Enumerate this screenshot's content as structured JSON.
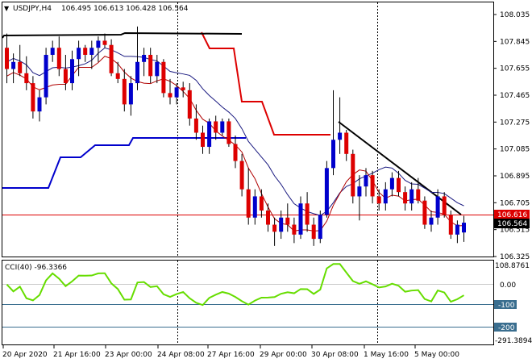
{
  "header": {
    "symbol": "USDJPY,H4",
    "ohlc": "106.495 106.613 106.428 106.564"
  },
  "price_axis": {
    "labels": [
      "108.035",
      "107.845",
      "107.655",
      "107.465",
      "107.275",
      "107.085",
      "106.895",
      "106.705",
      "106.515",
      "106.325"
    ],
    "badge_red": "106.616",
    "badge_black": "106.564"
  },
  "cci": {
    "title": "CCI(40) -96.3366",
    "axis_labels": [
      "108.8761",
      "0.00",
      "-100",
      "-200",
      "-291.3894"
    ]
  },
  "time_axis": {
    "labels": [
      "20 Apr 2020",
      "21 Apr 16:00",
      "23 Apr 00:00",
      "24 Apr 08:00",
      "27 Apr 16:00",
      "29 Apr 00:00",
      "30 Apr 08:00",
      "1 May 16:00",
      "5 May 00:00"
    ]
  },
  "colors": {
    "bull": "#0000cc",
    "bear": "#dd0000",
    "cci_line": "#66dd00",
    "trend": "#000000",
    "level_line": "#dd0000"
  },
  "chart_data": {
    "type": "candlestick",
    "title": "USDJPY,H4",
    "ylim": [
      106.325,
      108.13
    ],
    "candles": [
      [
        107.8,
        107.9,
        107.55,
        107.65
      ],
      [
        107.65,
        107.76,
        107.55,
        107.7
      ],
      [
        107.7,
        107.82,
        107.6,
        107.62
      ],
      [
        107.62,
        107.74,
        107.5,
        107.55
      ],
      [
        107.55,
        107.6,
        107.3,
        107.35
      ],
      [
        107.35,
        107.5,
        107.28,
        107.45
      ],
      [
        107.45,
        107.8,
        107.4,
        107.75
      ],
      [
        107.75,
        107.85,
        107.7,
        107.8
      ],
      [
        107.8,
        107.88,
        107.6,
        107.65
      ],
      [
        107.65,
        107.75,
        107.5,
        107.55
      ],
      [
        107.55,
        107.78,
        107.5,
        107.72
      ],
      [
        107.72,
        107.85,
        107.6,
        107.8
      ],
      [
        107.8,
        107.82,
        107.7,
        107.75
      ],
      [
        107.75,
        107.85,
        107.65,
        107.8
      ],
      [
        107.8,
        107.88,
        107.7,
        107.85
      ],
      [
        107.85,
        107.9,
        107.8,
        107.82
      ],
      [
        107.82,
        107.86,
        107.6,
        107.62
      ],
      [
        107.62,
        107.7,
        107.55,
        107.58
      ],
      [
        107.58,
        107.65,
        107.35,
        107.4
      ],
      [
        107.4,
        107.6,
        107.32,
        107.55
      ],
      [
        107.55,
        107.95,
        107.5,
        107.7
      ],
      [
        107.7,
        107.8,
        107.6,
        107.75
      ],
      [
        107.75,
        107.8,
        107.55,
        107.6
      ],
      [
        107.6,
        107.75,
        107.55,
        107.7
      ],
      [
        107.7,
        107.72,
        107.45,
        107.48
      ],
      [
        107.48,
        107.58,
        107.4,
        107.45
      ],
      [
        107.45,
        107.55,
        107.4,
        107.52
      ],
      [
        107.52,
        107.56,
        107.45,
        107.5
      ],
      [
        107.5,
        107.55,
        107.25,
        107.3
      ],
      [
        107.3,
        107.4,
        107.15,
        107.2
      ],
      [
        107.2,
        107.25,
        107.05,
        107.1
      ],
      [
        107.1,
        107.3,
        107.05,
        107.28
      ],
      [
        107.28,
        107.32,
        107.15,
        107.2
      ],
      [
        107.2,
        107.3,
        107.18,
        107.28
      ],
      [
        107.28,
        107.3,
        107.1,
        107.12
      ],
      [
        107.12,
        107.18,
        106.95,
        107.0
      ],
      [
        107.0,
        107.05,
        106.75,
        106.8
      ],
      [
        106.8,
        106.95,
        106.55,
        106.6
      ],
      [
        106.6,
        106.8,
        106.55,
        106.75
      ],
      [
        106.75,
        106.8,
        106.6,
        106.65
      ],
      [
        106.65,
        106.7,
        106.5,
        106.55
      ],
      [
        106.55,
        106.6,
        106.4,
        106.5
      ],
      [
        106.5,
        106.65,
        106.45,
        106.6
      ],
      [
        106.6,
        106.7,
        106.5,
        106.55
      ],
      [
        106.55,
        106.6,
        106.42,
        106.48
      ],
      [
        106.48,
        106.75,
        106.45,
        106.7
      ],
      [
        106.7,
        106.78,
        106.5,
        106.55
      ],
      [
        106.55,
        106.6,
        106.4,
        106.45
      ],
      [
        106.45,
        106.65,
        106.42,
        106.62
      ],
      [
        106.62,
        107.0,
        106.6,
        106.95
      ],
      [
        106.95,
        107.5,
        106.9,
        107.15
      ],
      [
        107.15,
        107.45,
        107.05,
        107.2
      ],
      [
        107.2,
        107.22,
        107.0,
        107.05
      ],
      [
        107.05,
        107.08,
        106.7,
        106.75
      ],
      [
        106.75,
        106.9,
        106.58,
        106.82
      ],
      [
        106.82,
        106.95,
        106.75,
        106.9
      ],
      [
        106.9,
        106.93,
        106.7,
        106.75
      ],
      [
        106.75,
        106.8,
        106.65,
        106.7
      ],
      [
        106.7,
        106.85,
        106.65,
        106.8
      ],
      [
        106.8,
        106.92,
        106.75,
        106.88
      ],
      [
        106.88,
        106.93,
        106.75,
        106.78
      ],
      [
        106.78,
        106.82,
        106.65,
        106.7
      ],
      [
        106.7,
        106.85,
        106.65,
        106.8
      ],
      [
        106.8,
        106.88,
        106.7,
        106.72
      ],
      [
        106.72,
        106.75,
        106.52,
        106.55
      ],
      [
        106.55,
        106.65,
        106.5,
        106.6
      ],
      [
        106.6,
        106.8,
        106.55,
        106.75
      ],
      [
        106.75,
        106.78,
        106.6,
        106.62
      ],
      [
        106.62,
        106.65,
        106.45,
        106.48
      ],
      [
        106.48,
        106.58,
        106.42,
        106.55
      ],
      [
        106.495,
        106.613,
        106.428,
        106.564
      ]
    ],
    "cci_ylim": [
      -291.3894,
      108.8761
    ]
  }
}
